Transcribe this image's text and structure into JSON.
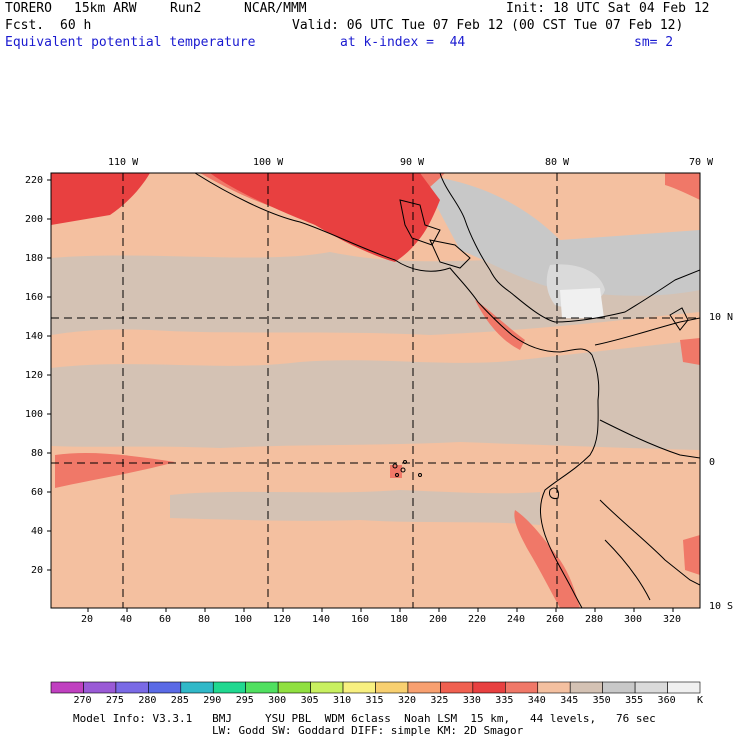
{
  "header": {
    "model": "TORERO",
    "res": "15km ARW",
    "run": "Run2",
    "org": "NCAR/MMM",
    "init": "Init: 18 UTC Sat 04 Feb 12",
    "fcst_label": "Fcst.",
    "fcst_value": "60 h",
    "valid": "Valid: 06 UTC Tue 07 Feb 12 (00 CST Tue 07 Feb 12)",
    "field": "Equivalent potential temperature",
    "level": "at k-index =  44",
    "smooth": "sm= 2"
  },
  "map": {
    "lon_labels": [
      "110 W",
      "100 W",
      "90 W",
      "80 W",
      "70 W"
    ],
    "lat_labels": [
      "10 N",
      "0",
      "10 S"
    ],
    "y_ticks": [
      "220",
      "200",
      "180",
      "160",
      "140",
      "120",
      "100",
      "80",
      "60",
      "40",
      "20"
    ],
    "x_ticks": [
      "20",
      "40",
      "60",
      "80",
      "100",
      "120",
      "140",
      "160",
      "180",
      "200",
      "220",
      "240",
      "260",
      "280",
      "300",
      "320"
    ]
  },
  "colorbar": {
    "unit": "K",
    "levels": [
      "270",
      "275",
      "280",
      "285",
      "290",
      "295",
      "300",
      "305",
      "310",
      "315",
      "320",
      "325",
      "330",
      "335",
      "340",
      "345",
      "350",
      "355",
      "360"
    ],
    "colors": [
      "#c040c0",
      "#9a5ad6",
      "#7a6ae6",
      "#5a6ae6",
      "#30b8c8",
      "#20d890",
      "#50e060",
      "#90e040",
      "#c8f060",
      "#f8f080",
      "#f8d070",
      "#f8a070",
      "#f06050",
      "#e84040",
      "#f07868",
      "#f4c0a0",
      "#d4c2b4",
      "#c8c8c8",
      "#dadada",
      "#f0f0f0"
    ]
  },
  "footer": {
    "line1": "Model Info: V3.3.1   BMJ     YSU PBL  WDM 6class  Noah LSM  15 km,   44 levels,   76 sec",
    "line2": "LW: Godd SW: Goddard DIFF: simple KM: 2D Smagor"
  }
}
